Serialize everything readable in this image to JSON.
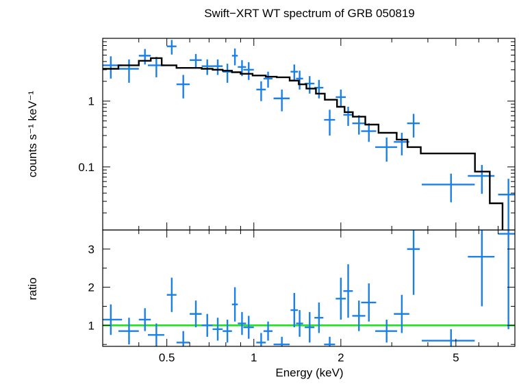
{
  "title": "Swift−XRT WT spectrum of GRB 050819",
  "colors": {
    "data": "#1a7fe6",
    "model": "#000000",
    "unity_line": "#22e022"
  },
  "chart_data": [
    {
      "type": "scatter",
      "panel": "spectrum",
      "xlabel": "",
      "ylabel": "counts s⁻¹ keV⁻¹",
      "xscale": "log",
      "yscale": "log",
      "xlim": [
        0.3,
        8.0
      ],
      "ylim": [
        0.011,
        9.0
      ],
      "y_ticks": [
        {
          "value": 0.1,
          "label": "0.1"
        },
        {
          "value": 1,
          "label": "1"
        }
      ],
      "series": [
        {
          "kind": "data_points",
          "x": [
            0.32,
            0.37,
            0.42,
            0.46,
            0.52,
            0.57,
            0.63,
            0.69,
            0.75,
            0.81,
            0.86,
            0.91,
            0.96,
            1.06,
            1.12,
            1.25,
            1.38,
            1.44,
            1.56,
            1.68,
            1.83,
            2.0,
            2.12,
            2.31,
            2.5,
            2.88,
            3.25,
            3.57,
            4.81,
            6.15,
            7.6
          ],
          "x_err": [
            0.03,
            0.03,
            0.02,
            0.03,
            0.02,
            0.03,
            0.03,
            0.03,
            0.03,
            0.03,
            0.02,
            0.03,
            0.04,
            0.04,
            0.04,
            0.08,
            0.04,
            0.04,
            0.06,
            0.06,
            0.08,
            0.08,
            0.08,
            0.12,
            0.15,
            0.25,
            0.2,
            0.18,
            1.0,
            0.65,
            0.6
          ],
          "y": [
            3.5,
            3.1,
            4.9,
            3.5,
            6.8,
            1.8,
            4.2,
            3.4,
            3.4,
            2.8,
            4.9,
            3.3,
            3.0,
            1.5,
            2.2,
            1.1,
            2.8,
            2.2,
            1.85,
            1.6,
            0.52,
            1.15,
            0.62,
            0.46,
            0.35,
            0.2,
            0.24,
            0.46,
            0.054,
            0.073,
            0.038
          ],
          "y_err": [
            1.3,
            1.2,
            1.3,
            1.2,
            1.7,
            0.7,
            1.0,
            0.9,
            0.9,
            0.9,
            1.4,
            0.9,
            0.9,
            0.5,
            0.6,
            0.4,
            0.8,
            0.7,
            0.55,
            0.5,
            0.22,
            0.35,
            0.2,
            0.15,
            0.11,
            0.08,
            0.09,
            0.18,
            0.025,
            0.034,
            0.028
          ]
        },
        {
          "kind": "model_step",
          "edges": [
            0.29,
            0.34,
            0.4,
            0.44,
            0.48,
            0.54,
            0.6,
            0.66,
            0.72,
            0.78,
            0.84,
            0.9,
            0.99,
            1.1,
            1.2,
            1.33,
            1.43,
            1.52,
            1.64,
            1.76,
            1.94,
            2.06,
            2.2,
            2.43,
            2.7,
            3.12,
            3.4,
            3.78,
            5.82,
            6.55,
            7.05
          ],
          "values": [
            3.1,
            3.5,
            4.1,
            4.5,
            3.5,
            3.2,
            3.2,
            3.1,
            3.0,
            2.9,
            2.75,
            2.6,
            2.45,
            2.35,
            2.3,
            2.05,
            1.8,
            1.55,
            1.3,
            1.05,
            0.82,
            0.68,
            0.58,
            0.44,
            0.33,
            0.26,
            0.2,
            0.16,
            0.085,
            0.028,
            0.028
          ]
        }
      ]
    },
    {
      "type": "scatter",
      "panel": "ratio",
      "xlabel": "Energy (keV)",
      "ylabel": "ratio",
      "xscale": "log",
      "yscale": "linear",
      "xlim": [
        0.3,
        8.0
      ],
      "ylim": [
        0.45,
        3.5
      ],
      "x_ticks": [
        {
          "value": 0.5,
          "label": "0.5"
        },
        {
          "value": 1,
          "label": "1"
        },
        {
          "value": 2,
          "label": "2"
        },
        {
          "value": 5,
          "label": "5"
        }
      ],
      "y_ticks": [
        {
          "value": 1,
          "label": "1"
        },
        {
          "value": 2,
          "label": "2"
        },
        {
          "value": 3,
          "label": "3"
        }
      ],
      "reference_line": 1.0,
      "series": [
        {
          "kind": "data_points",
          "x": [
            0.32,
            0.37,
            0.42,
            0.46,
            0.52,
            0.57,
            0.63,
            0.69,
            0.75,
            0.81,
            0.86,
            0.91,
            0.96,
            1.06,
            1.12,
            1.25,
            1.38,
            1.44,
            1.56,
            1.68,
            1.83,
            2.0,
            2.12,
            2.31,
            2.5,
            2.88,
            3.25,
            3.57,
            4.81,
            6.15,
            7.6
          ],
          "x_err": [
            0.03,
            0.03,
            0.02,
            0.03,
            0.02,
            0.03,
            0.03,
            0.03,
            0.03,
            0.03,
            0.02,
            0.03,
            0.04,
            0.04,
            0.04,
            0.08,
            0.04,
            0.04,
            0.06,
            0.06,
            0.08,
            0.08,
            0.08,
            0.12,
            0.15,
            0.25,
            0.2,
            0.18,
            1.0,
            0.65,
            0.6
          ],
          "y": [
            1.15,
            0.85,
            1.15,
            0.75,
            1.8,
            0.55,
            1.3,
            1.0,
            0.9,
            0.85,
            1.55,
            1.05,
            0.95,
            0.55,
            0.85,
            0.5,
            1.4,
            1.05,
            0.95,
            1.2,
            0.5,
            1.7,
            1.9,
            1.25,
            1.6,
            0.85,
            1.3,
            3.0,
            0.6,
            2.8,
            3.4
          ],
          "y_err": [
            0.4,
            0.35,
            0.3,
            0.3,
            0.45,
            0.3,
            0.35,
            0.3,
            0.3,
            0.3,
            0.45,
            0.3,
            0.3,
            0.25,
            0.25,
            0.2,
            0.45,
            0.35,
            0.4,
            0.4,
            0.2,
            0.55,
            0.7,
            0.4,
            0.5,
            0.3,
            0.5,
            1.2,
            0.3,
            1.3,
            2.5
          ]
        }
      ]
    }
  ]
}
